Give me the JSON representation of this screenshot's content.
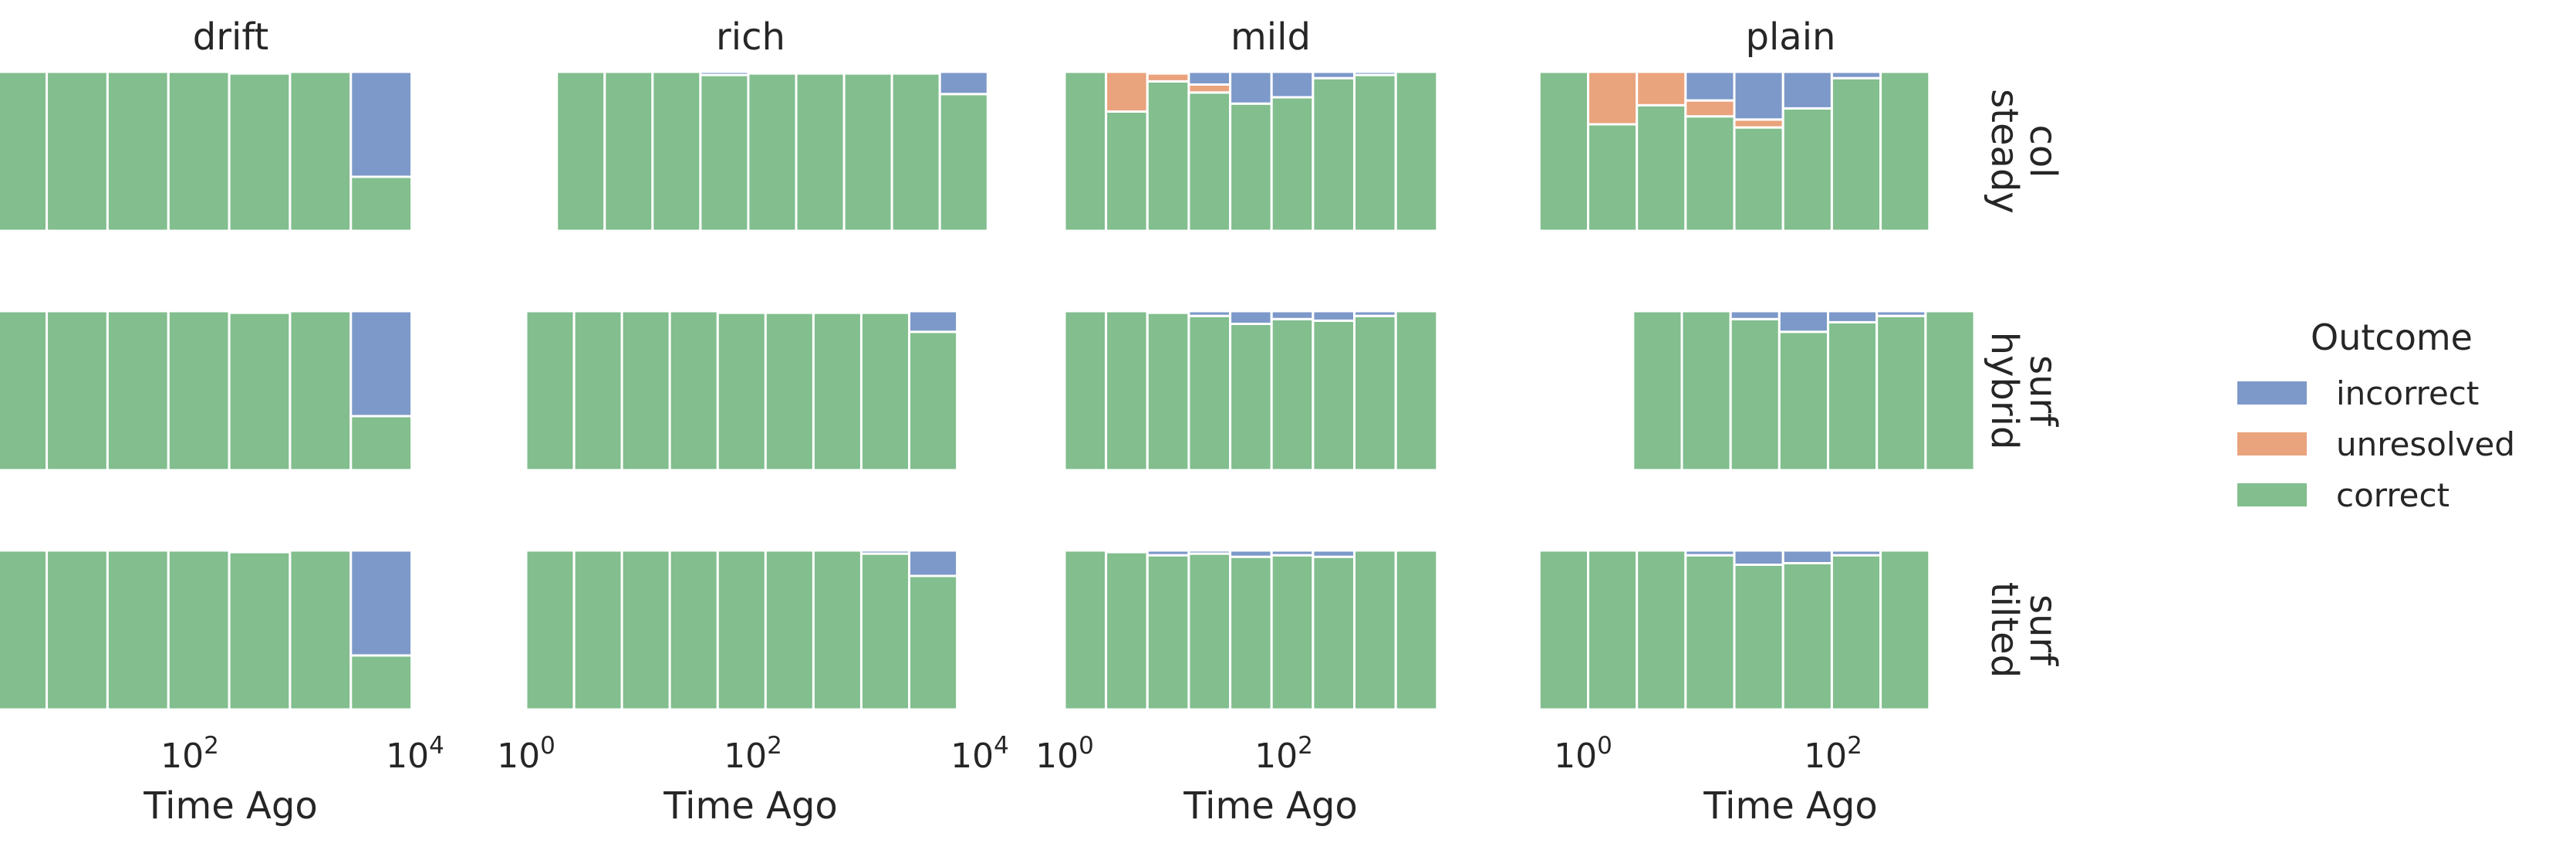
{
  "chart_data": {
    "type": "bar",
    "stacked": true,
    "x_scale": "log",
    "x_tick_label_base": "10",
    "xlabel": "Time Ago",
    "columns": [
      "drift",
      "rich",
      "mild",
      "plain"
    ],
    "rows": [
      [
        "col",
        "steady"
      ],
      [
        "surf",
        "hybrid"
      ],
      [
        "surf",
        "tilted"
      ]
    ],
    "col_x_ticks": [
      [
        2,
        4
      ],
      [
        0,
        2,
        4
      ],
      [
        0,
        2
      ],
      [
        0,
        2
      ]
    ],
    "legend": {
      "title": "Outcome",
      "position": "right",
      "entries": [
        {
          "key": "incorrect",
          "label": "incorrect",
          "color": "#7d99c9"
        },
        {
          "key": "unresolved",
          "label": "unresolved",
          "color": "#e9a37d"
        },
        {
          "key": "correct",
          "label": "correct",
          "color": "#82be8e"
        }
      ]
    },
    "stack_order": [
      "correct",
      "unresolved",
      "incorrect"
    ],
    "grid": false,
    "panels": [
      [
        {
          "x_start_log10": -0.35,
          "bin_width_log10": 0.54,
          "bins": [
            {
              "correct": 1,
              "unresolved": 0,
              "incorrect": 0
            },
            {
              "correct": 1,
              "unresolved": 0,
              "incorrect": 0
            },
            {
              "correct": 1,
              "unresolved": 0,
              "incorrect": 0
            },
            {
              "correct": 1,
              "unresolved": 0,
              "incorrect": 0
            },
            {
              "correct": 1,
              "unresolved": 0,
              "incorrect": 0
            },
            {
              "correct": 0.99,
              "unresolved": 0,
              "incorrect": 0.01
            },
            {
              "correct": 1,
              "unresolved": 0,
              "incorrect": 0
            },
            {
              "correct": 0.34,
              "unresolved": 0,
              "incorrect": 0.66
            }
          ]
        },
        {
          "x_start_log10": 0.27,
          "bin_width_log10": 0.4222,
          "bins": [
            {
              "correct": 1,
              "unresolved": 0,
              "incorrect": 0
            },
            {
              "correct": 1,
              "unresolved": 0,
              "incorrect": 0
            },
            {
              "correct": 1,
              "unresolved": 0,
              "incorrect": 0
            },
            {
              "correct": 0.98,
              "unresolved": 0,
              "incorrect": 0.02
            },
            {
              "correct": 0.99,
              "unresolved": 0,
              "incorrect": 0.01
            },
            {
              "correct": 0.99,
              "unresolved": 0,
              "incorrect": 0.01
            },
            {
              "correct": 0.99,
              "unresolved": 0,
              "incorrect": 0.01
            },
            {
              "correct": 0.99,
              "unresolved": 0,
              "incorrect": 0.01
            },
            {
              "correct": 0.86,
              "unresolved": 0,
              "incorrect": 0.14
            }
          ]
        },
        {
          "x_start_log10": 0.0,
          "bin_width_log10": 0.3778,
          "bins": [
            {
              "correct": 1,
              "unresolved": 0,
              "incorrect": 0
            },
            {
              "correct": 0.75,
              "unresolved": 0.25,
              "incorrect": 0
            },
            {
              "correct": 0.94,
              "unresolved": 0.05,
              "incorrect": 0.01
            },
            {
              "correct": 0.87,
              "unresolved": 0.05,
              "incorrect": 0.08
            },
            {
              "correct": 0.8,
              "unresolved": 0,
              "incorrect": 0.2
            },
            {
              "correct": 0.84,
              "unresolved": 0,
              "incorrect": 0.16
            },
            {
              "correct": 0.96,
              "unresolved": 0,
              "incorrect": 0.04
            },
            {
              "correct": 0.98,
              "unresolved": 0,
              "incorrect": 0.02
            },
            {
              "correct": 1,
              "unresolved": 0,
              "incorrect": 0
            }
          ]
        },
        {
          "x_start_log10": -0.35,
          "bin_width_log10": 0.39,
          "bins": [
            {
              "correct": 1,
              "unresolved": 0,
              "incorrect": 0
            },
            {
              "correct": 0.67,
              "unresolved": 0.33,
              "incorrect": 0
            },
            {
              "correct": 0.79,
              "unresolved": 0.21,
              "incorrect": 0
            },
            {
              "correct": 0.72,
              "unresolved": 0.1,
              "incorrect": 0.18
            },
            {
              "correct": 0.65,
              "unresolved": 0.05,
              "incorrect": 0.3
            },
            {
              "correct": 0.77,
              "unresolved": 0,
              "incorrect": 0.23
            },
            {
              "correct": 0.96,
              "unresolved": 0,
              "incorrect": 0.04
            },
            {
              "correct": 1,
              "unresolved": 0,
              "incorrect": 0
            }
          ]
        }
      ],
      [
        {
          "x_start_log10": -0.35,
          "bin_width_log10": 0.54,
          "bins": [
            {
              "correct": 1,
              "unresolved": 0,
              "incorrect": 0
            },
            {
              "correct": 1,
              "unresolved": 0,
              "incorrect": 0
            },
            {
              "correct": 1,
              "unresolved": 0,
              "incorrect": 0
            },
            {
              "correct": 1,
              "unresolved": 0,
              "incorrect": 0
            },
            {
              "correct": 1,
              "unresolved": 0,
              "incorrect": 0
            },
            {
              "correct": 0.99,
              "unresolved": 0,
              "incorrect": 0.01
            },
            {
              "correct": 1,
              "unresolved": 0,
              "incorrect": 0
            },
            {
              "correct": 0.34,
              "unresolved": 0,
              "incorrect": 0.66
            }
          ]
        },
        {
          "x_start_log10": 0.0,
          "bin_width_log10": 0.4222,
          "bins": [
            {
              "correct": 1,
              "unresolved": 0,
              "incorrect": 0
            },
            {
              "correct": 1,
              "unresolved": 0,
              "incorrect": 0
            },
            {
              "correct": 1,
              "unresolved": 0,
              "incorrect": 0
            },
            {
              "correct": 1,
              "unresolved": 0,
              "incorrect": 0
            },
            {
              "correct": 0.99,
              "unresolved": 0,
              "incorrect": 0.01
            },
            {
              "correct": 0.99,
              "unresolved": 0,
              "incorrect": 0.01
            },
            {
              "correct": 0.99,
              "unresolved": 0,
              "incorrect": 0.01
            },
            {
              "correct": 0.99,
              "unresolved": 0,
              "incorrect": 0.01
            },
            {
              "correct": 0.87,
              "unresolved": 0,
              "incorrect": 0.13
            }
          ]
        },
        {
          "x_start_log10": 0.0,
          "bin_width_log10": 0.3778,
          "bins": [
            {
              "correct": 1,
              "unresolved": 0,
              "incorrect": 0
            },
            {
              "correct": 1,
              "unresolved": 0,
              "incorrect": 0
            },
            {
              "correct": 0.99,
              "unresolved": 0,
              "incorrect": 0.01
            },
            {
              "correct": 0.97,
              "unresolved": 0,
              "incorrect": 0.03
            },
            {
              "correct": 0.92,
              "unresolved": 0,
              "incorrect": 0.08
            },
            {
              "correct": 0.95,
              "unresolved": 0,
              "incorrect": 0.05
            },
            {
              "correct": 0.94,
              "unresolved": 0,
              "incorrect": 0.06
            },
            {
              "correct": 0.97,
              "unresolved": 0,
              "incorrect": 0.03
            },
            {
              "correct": 1,
              "unresolved": 0,
              "incorrect": 0
            }
          ]
        },
        {
          "x_start_log10": 0.4,
          "bin_width_log10": 0.39,
          "bins": [
            {
              "correct": 1,
              "unresolved": 0,
              "incorrect": 0
            },
            {
              "correct": 1,
              "unresolved": 0,
              "incorrect": 0
            },
            {
              "correct": 0.95,
              "unresolved": 0,
              "incorrect": 0.05
            },
            {
              "correct": 0.87,
              "unresolved": 0,
              "incorrect": 0.13
            },
            {
              "correct": 0.93,
              "unresolved": 0,
              "incorrect": 0.07
            },
            {
              "correct": 0.97,
              "unresolved": 0,
              "incorrect": 0.03
            },
            {
              "correct": 1,
              "unresolved": 0,
              "incorrect": 0
            }
          ]
        }
      ],
      [
        {
          "x_start_log10": -0.35,
          "bin_width_log10": 0.54,
          "bins": [
            {
              "correct": 1,
              "unresolved": 0,
              "incorrect": 0
            },
            {
              "correct": 1,
              "unresolved": 0,
              "incorrect": 0
            },
            {
              "correct": 1,
              "unresolved": 0,
              "incorrect": 0
            },
            {
              "correct": 1,
              "unresolved": 0,
              "incorrect": 0
            },
            {
              "correct": 1,
              "unresolved": 0,
              "incorrect": 0
            },
            {
              "correct": 0.99,
              "unresolved": 0,
              "incorrect": 0.01
            },
            {
              "correct": 1,
              "unresolved": 0,
              "incorrect": 0
            },
            {
              "correct": 0.34,
              "unresolved": 0,
              "incorrect": 0.66
            }
          ]
        },
        {
          "x_start_log10": 0.0,
          "bin_width_log10": 0.4222,
          "bins": [
            {
              "correct": 1,
              "unresolved": 0,
              "incorrect": 0
            },
            {
              "correct": 1,
              "unresolved": 0,
              "incorrect": 0
            },
            {
              "correct": 1,
              "unresolved": 0,
              "incorrect": 0
            },
            {
              "correct": 1,
              "unresolved": 0,
              "incorrect": 0
            },
            {
              "correct": 1,
              "unresolved": 0,
              "incorrect": 0
            },
            {
              "correct": 1,
              "unresolved": 0,
              "incorrect": 0
            },
            {
              "correct": 1,
              "unresolved": 0,
              "incorrect": 0
            },
            {
              "correct": 0.98,
              "unresolved": 0,
              "incorrect": 0.02
            },
            {
              "correct": 0.84,
              "unresolved": 0,
              "incorrect": 0.16
            }
          ]
        },
        {
          "x_start_log10": 0.0,
          "bin_width_log10": 0.3778,
          "bins": [
            {
              "correct": 1,
              "unresolved": 0,
              "incorrect": 0
            },
            {
              "correct": 0.99,
              "unresolved": 0,
              "incorrect": 0.01
            },
            {
              "correct": 0.97,
              "unresolved": 0,
              "incorrect": 0.03
            },
            {
              "correct": 0.98,
              "unresolved": 0,
              "incorrect": 0.02
            },
            {
              "correct": 0.96,
              "unresolved": 0,
              "incorrect": 0.04
            },
            {
              "correct": 0.97,
              "unresolved": 0,
              "incorrect": 0.03
            },
            {
              "correct": 0.96,
              "unresolved": 0,
              "incorrect": 0.04
            },
            {
              "correct": 1,
              "unresolved": 0,
              "incorrect": 0
            },
            {
              "correct": 1,
              "unresolved": 0,
              "incorrect": 0
            }
          ]
        },
        {
          "x_start_log10": -0.35,
          "bin_width_log10": 0.39,
          "bins": [
            {
              "correct": 1,
              "unresolved": 0,
              "incorrect": 0
            },
            {
              "correct": 1,
              "unresolved": 0,
              "incorrect": 0
            },
            {
              "correct": 1,
              "unresolved": 0,
              "incorrect": 0
            },
            {
              "correct": 0.97,
              "unresolved": 0,
              "incorrect": 0.03
            },
            {
              "correct": 0.91,
              "unresolved": 0,
              "incorrect": 0.09
            },
            {
              "correct": 0.92,
              "unresolved": 0,
              "incorrect": 0.08
            },
            {
              "correct": 0.97,
              "unresolved": 0,
              "incorrect": 0.03
            },
            {
              "correct": 1,
              "unresolved": 0,
              "incorrect": 0
            }
          ]
        }
      ]
    ]
  }
}
